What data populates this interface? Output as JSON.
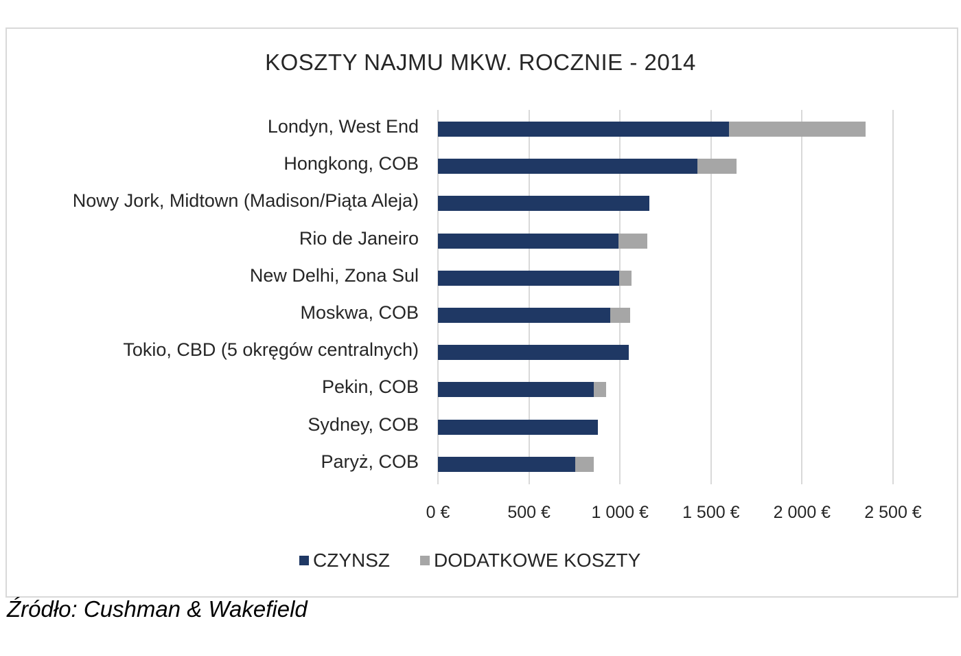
{
  "chart_data": {
    "type": "bar",
    "orientation": "horizontal",
    "stacked": true,
    "title": "KOSZTY  NAJMU  MKW. ROCZNIE  - 2014",
    "xlabel": "",
    "ylabel": "",
    "xlim": [
      0,
      2500
    ],
    "x_ticks": [
      "0 €",
      "500 €",
      "1 000 €",
      "1 500 €",
      "2 000 €",
      "2 500 €"
    ],
    "x_tick_values": [
      0,
      500,
      1000,
      1500,
      2000,
      2500
    ],
    "grid": true,
    "legend_position": "bottom",
    "categories": [
      "Londyn, West End",
      "Hongkong, COB",
      "Nowy Jork, Midtown (Madison/Piąta Aleja)",
      "Rio de Janeiro",
      "New Delhi, Zona Sul",
      "Moskwa, COB",
      "Tokio, CBD (5 okręgów centralnych)",
      "Pekin, COB",
      "Sydney, COB",
      "Paryż, COB"
    ],
    "series": [
      {
        "name": "CZYNSZ",
        "color": "#1f3864",
        "values": [
          1600,
          1425,
          1160,
          990,
          995,
          945,
          1050,
          855,
          880,
          755
        ]
      },
      {
        "name": "DODATKOWE KOSZTY",
        "color": "#a6a6a6",
        "values": [
          750,
          215,
          0,
          160,
          70,
          110,
          0,
          70,
          0,
          100
        ]
      }
    ]
  },
  "legend": {
    "items": [
      {
        "label": "CZYNSZ",
        "color": "#1f3864"
      },
      {
        "label": "DODATKOWE KOSZTY",
        "color": "#a6a6a6"
      }
    ]
  },
  "source": "Źródło: Cushman & Wakefield"
}
